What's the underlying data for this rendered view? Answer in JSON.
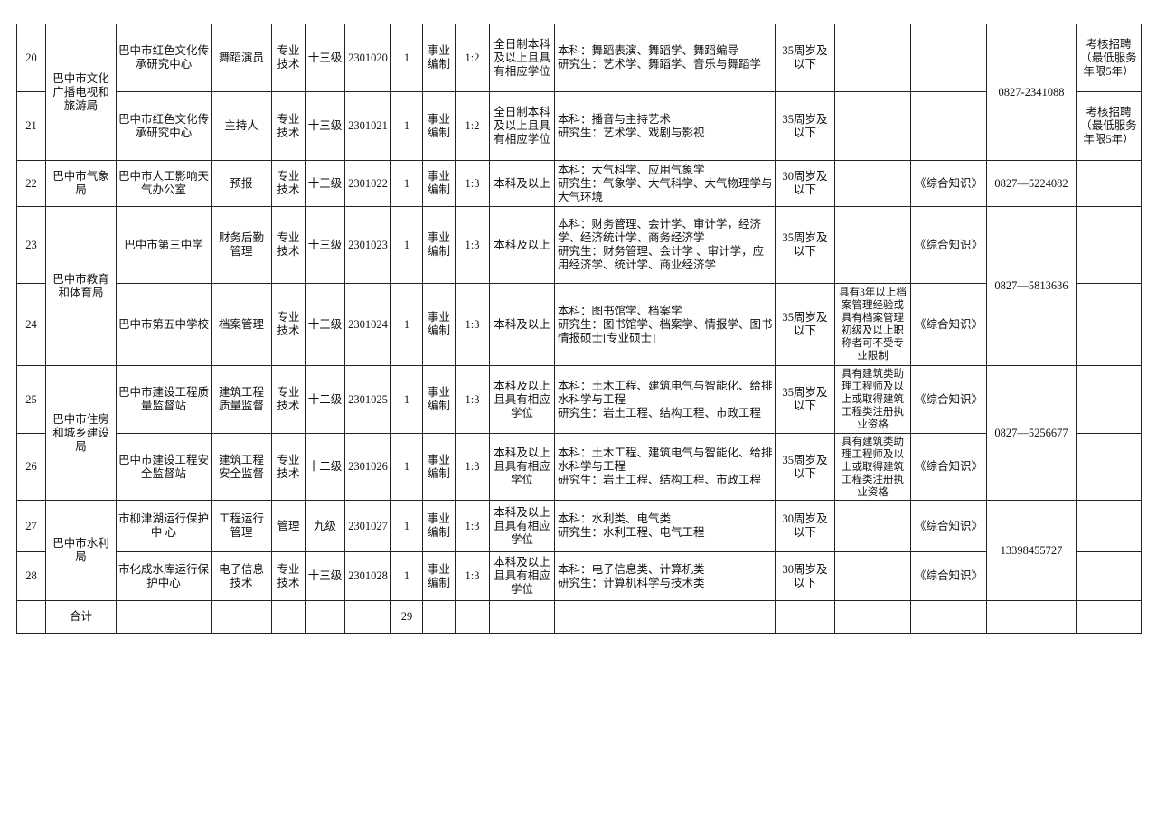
{
  "rows": [
    {
      "no": "20",
      "dept": "巴中市文化广播电视和旅游局",
      "unit": "巴中市红色文化传承研究中心",
      "post": "舞蹈演员",
      "type": "专业技术",
      "level": "十三级",
      "code": "2301020",
      "count": "1",
      "nature": "事业编制",
      "ratio": "1:2",
      "edu": "全日制本科及以上且具有相应学位",
      "major": [
        "本科：舞蹈表演、舞蹈学、舞蹈编导",
        "研究生：艺术学、舞蹈学、音乐与舞蹈学"
      ],
      "age": "35周岁及以下",
      "other": "",
      "exam": "",
      "phone": "0827-2341088",
      "note": "考核招聘（最低服务年限5年）"
    },
    {
      "no": "21",
      "unit": "巴中市红色文化传承研究中心",
      "post": "主持人",
      "type": "专业技术",
      "level": "十三级",
      "code": "2301021",
      "count": "1",
      "nature": "事业编制",
      "ratio": "1:2",
      "edu": "全日制本科及以上且具有相应学位",
      "major": [
        "本科：播音与主持艺术",
        "研究生：艺术学、戏剧与影视"
      ],
      "age": "35周岁及以下",
      "other": "",
      "exam": "",
      "note": "考核招聘（最低服务年限5年）"
    },
    {
      "no": "22",
      "dept": "巴中市气象局",
      "unit": "巴中市人工影响天气办公室",
      "post": "预报",
      "type": "专业技术",
      "level": "十三级",
      "code": "2301022",
      "count": "1",
      "nature": "事业编制",
      "ratio": "1:3",
      "edu": "本科及以上",
      "major": [
        "本科：大气科学、应用气象学",
        "研究生：气象学、大气科学、大气物理学与大气环境"
      ],
      "age": "30周岁及以下",
      "other": "",
      "exam": "《综合知识》",
      "phone": "0827—5224082",
      "note": ""
    },
    {
      "no": "23",
      "dept": "巴中市教育和体育局",
      "unit": "巴中市第三中学",
      "post": "财务后勤管理",
      "type": "专业技术",
      "level": "十三级",
      "code": "2301023",
      "count": "1",
      "nature": "事业编制",
      "ratio": "1:3",
      "edu": "本科及以上",
      "major": [
        "本科：财务管理、会计学、审计学，经济学、经济统计学、商务经济学",
        "研究生：财务管理、会计学 、审计学，应用经济学、统计学、商业经济学"
      ],
      "age": "35周岁及以下",
      "other": "",
      "exam": "《综合知识》",
      "phone": "0827—5813636",
      "note": ""
    },
    {
      "no": "24",
      "unit": "巴中市第五中学校",
      "post": "档案管理",
      "type": "专业技术",
      "level": "十三级",
      "code": "2301024",
      "count": "1",
      "nature": "事业编制",
      "ratio": "1:3",
      "edu": "本科及以上",
      "major": [
        "本科：图书馆学、档案学",
        "研究生：图书馆学、档案学、情报学、图书情报硕士[专业硕士]"
      ],
      "age": "35周岁及以下",
      "other": "具有3年以上档案管理经验或具有档案管理初级及以上职称者可不受专业限制",
      "exam": "《综合知识》",
      "note": ""
    },
    {
      "no": "25",
      "dept": "巴中市住房和城乡建设局",
      "unit": "巴中市建设工程质量监督站",
      "post": "建筑工程质量监督",
      "type": "专业技术",
      "level": "十二级",
      "code": "2301025",
      "count": "1",
      "nature": "事业编制",
      "ratio": "1:3",
      "edu": "本科及以上且具有相应学位",
      "major": [
        "本科：土木工程、建筑电气与智能化、给排水科学与工程",
        "研究生：岩土工程、结构工程、市政工程"
      ],
      "age": "35周岁及以下",
      "other": "具有建筑类助理工程师及以上或取得建筑工程类注册执业资格",
      "exam": "《综合知识》",
      "phone": "0827—5256677",
      "note": ""
    },
    {
      "no": "26",
      "unit": "巴中市建设工程安全监督站",
      "post": "建筑工程安全监督",
      "type": "专业技术",
      "level": "十二级",
      "code": "2301026",
      "count": "1",
      "nature": "事业编制",
      "ratio": "1:3",
      "edu": "本科及以上且具有相应学位",
      "major": [
        "本科：土木工程、建筑电气与智能化、给排水科学与工程",
        "研究生：岩土工程、结构工程、市政工程"
      ],
      "age": "35周岁及以下",
      "other": "具有建筑类助理工程师及以上或取得建筑工程类注册执业资格",
      "exam": "《综合知识》",
      "note": ""
    },
    {
      "no": "27",
      "dept": "巴中市水利局",
      "unit": "市柳津湖运行保护 中 心",
      "post": "工程运行管理",
      "type": "管理",
      "level": "九级",
      "code": "2301027",
      "count": "1",
      "nature": "事业编制",
      "ratio": "1:3",
      "edu": "本科及以上且具有相应学位",
      "major": [
        "本科：水利类、电气类",
        "研究生：水利工程、电气工程"
      ],
      "age": "30周岁及以下",
      "other": "",
      "exam": "《综合知识》",
      "phone": "13398455727",
      "note": ""
    },
    {
      "no": "28",
      "unit": "市化成水库运行保护中心",
      "post": "电子信息技术",
      "type": "专业技术",
      "level": "十三级",
      "code": "2301028",
      "count": "1",
      "nature": "事业编制",
      "ratio": "1:3",
      "edu": "本科及以上且具有相应学位",
      "major": [
        "本科：电子信息类、计算机类",
        "研究生：计算机科学与技术类"
      ],
      "age": "30周岁及以下",
      "other": "",
      "exam": "《综合知识》",
      "note": ""
    }
  ],
  "total": {
    "label": "合计",
    "count": "29"
  }
}
